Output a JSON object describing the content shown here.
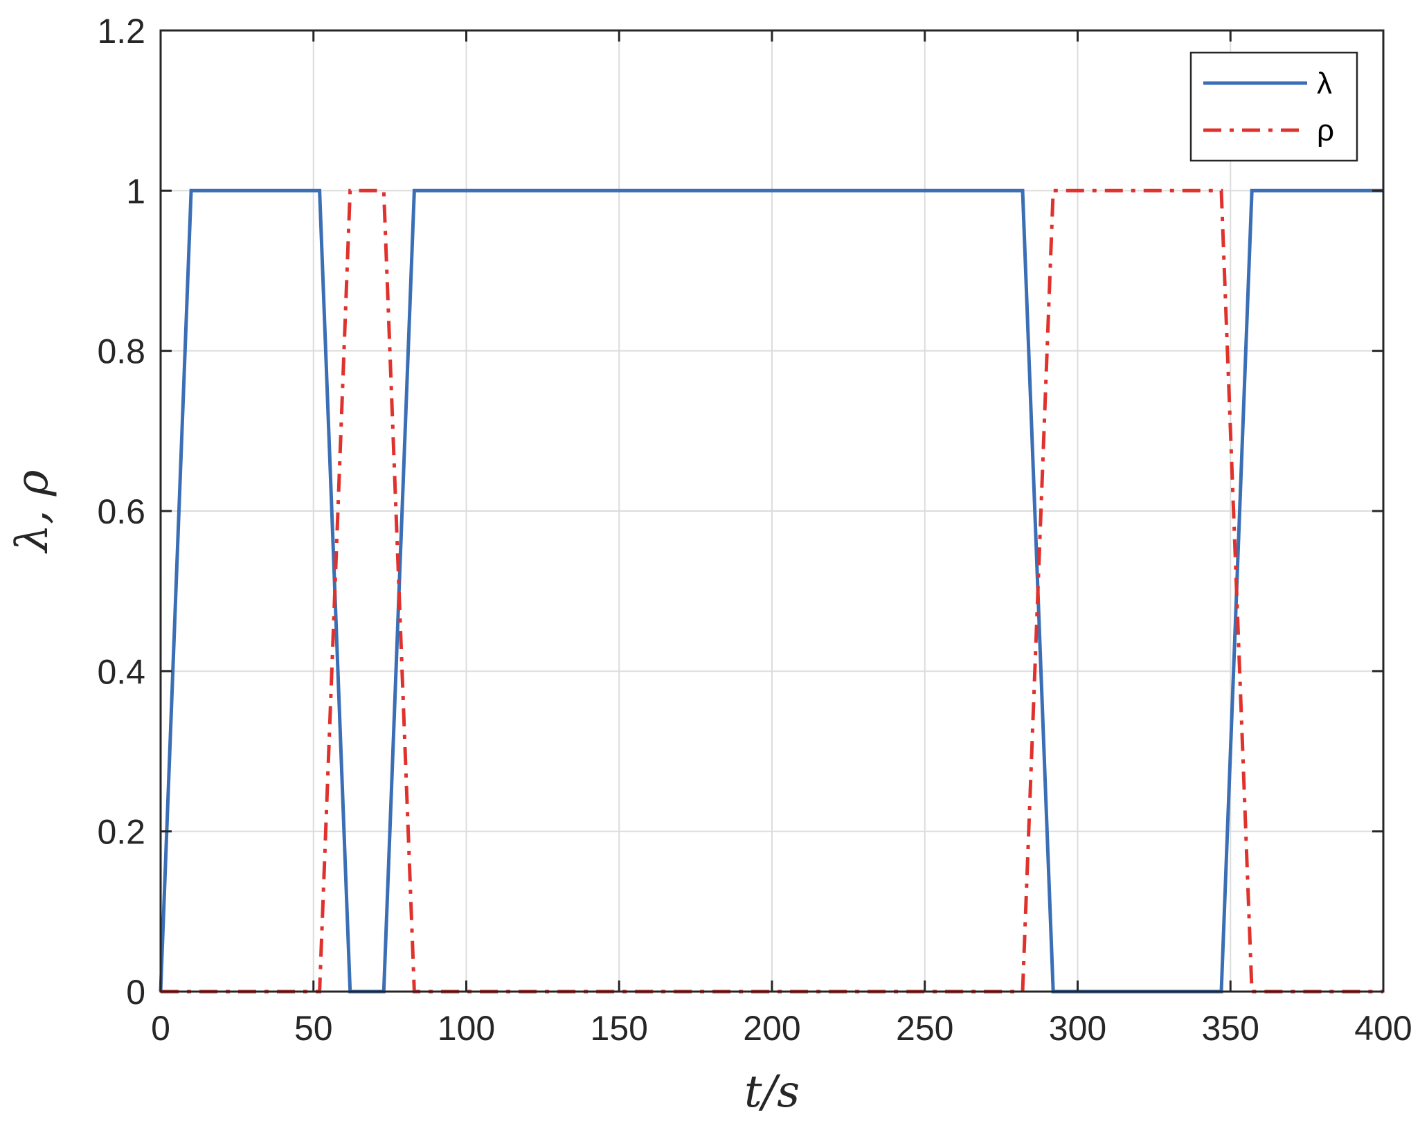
{
  "chart_data": {
    "type": "line",
    "title": "",
    "xlabel": "t/s",
    "ylabel": "λ, ρ",
    "xlim": [
      0,
      400
    ],
    "ylim": [
      0,
      1.2
    ],
    "x_ticks": [
      "0",
      "50",
      "100",
      "150",
      "200",
      "250",
      "300",
      "350",
      "400"
    ],
    "y_ticks": [
      "0",
      "0.2",
      "0.4",
      "0.6",
      "0.8",
      "1",
      "1.2"
    ],
    "grid": true,
    "legend_position": "top-right",
    "series": [
      {
        "name": "λ",
        "color": "#3A6EB5",
        "style": "solid",
        "points": [
          [
            0,
            0
          ],
          [
            10,
            1
          ],
          [
            52,
            1
          ],
          [
            62,
            0
          ],
          [
            73,
            0
          ],
          [
            83,
            1
          ],
          [
            282,
            1
          ],
          [
            292,
            0
          ],
          [
            347,
            0
          ],
          [
            357,
            1
          ],
          [
            400,
            1
          ]
        ]
      },
      {
        "name": "ρ",
        "color": "#E0322D",
        "style": "dashdot",
        "points": [
          [
            0,
            0
          ],
          [
            52,
            0
          ],
          [
            62,
            1
          ],
          [
            73,
            1
          ],
          [
            83,
            0
          ],
          [
            282,
            0
          ],
          [
            292,
            1
          ],
          [
            347,
            1
          ],
          [
            357,
            0
          ],
          [
            400,
            0
          ]
        ]
      }
    ]
  }
}
